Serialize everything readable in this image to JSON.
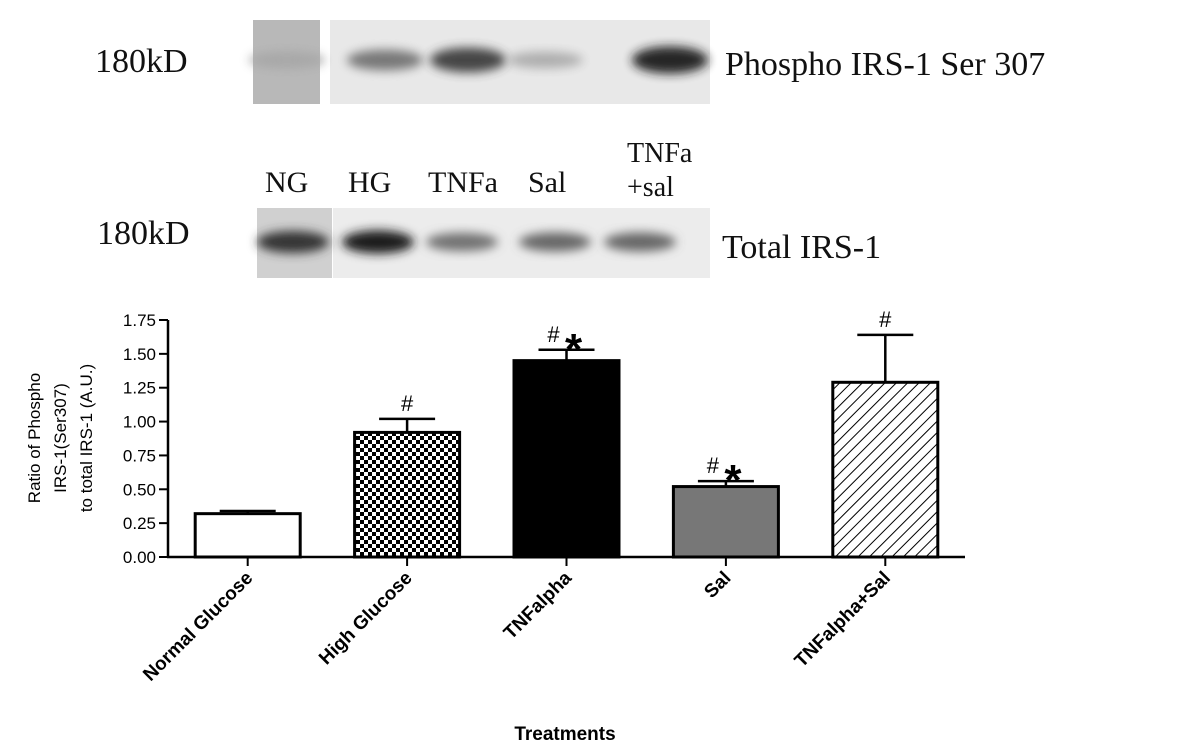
{
  "blots": {
    "top": {
      "mw_label": "180kD",
      "protein_label": "Phospho IRS-1 Ser 307",
      "band_intensity": [
        0.3,
        0.55,
        0.8,
        0.28,
        0.95
      ]
    },
    "lane_labels": [
      "NG",
      "HG",
      "TNFa",
      "Sal",
      "TNFa",
      "+sal"
    ],
    "bottom": {
      "mw_label": "180kD",
      "protein_label": "Total IRS-1",
      "band_intensity": [
        0.85,
        0.95,
        0.55,
        0.6,
        0.6
      ]
    }
  },
  "chart_data": {
    "type": "bar",
    "categories": [
      "Normal Glucose",
      "High Glucose",
      "TNFalpha",
      "Sal",
      "TNFalpha+Sal"
    ],
    "series": [
      {
        "values": [
          0.32,
          0.92,
          1.45,
          0.52,
          1.29
        ],
        "errors": [
          0.02,
          0.1,
          0.08,
          0.04,
          0.35
        ]
      }
    ],
    "annotations": [
      "",
      "#",
      "#*",
      "#*",
      "#"
    ],
    "bar_fills": [
      "white",
      "checker",
      "#000000",
      "#777777",
      "hatch"
    ],
    "xlabel": "Treatments",
    "ylabel_lines": [
      "Ratio of Phospho",
      "IRS-1(Ser307)",
      "to total IRS-1 (A.U.)"
    ],
    "ylim": [
      0,
      1.75
    ],
    "yticks": [
      "0.00",
      "0.25",
      "0.50",
      "0.75",
      "1.00",
      "1.25",
      "1.50",
      "1.75"
    ],
    "grid": false
  }
}
